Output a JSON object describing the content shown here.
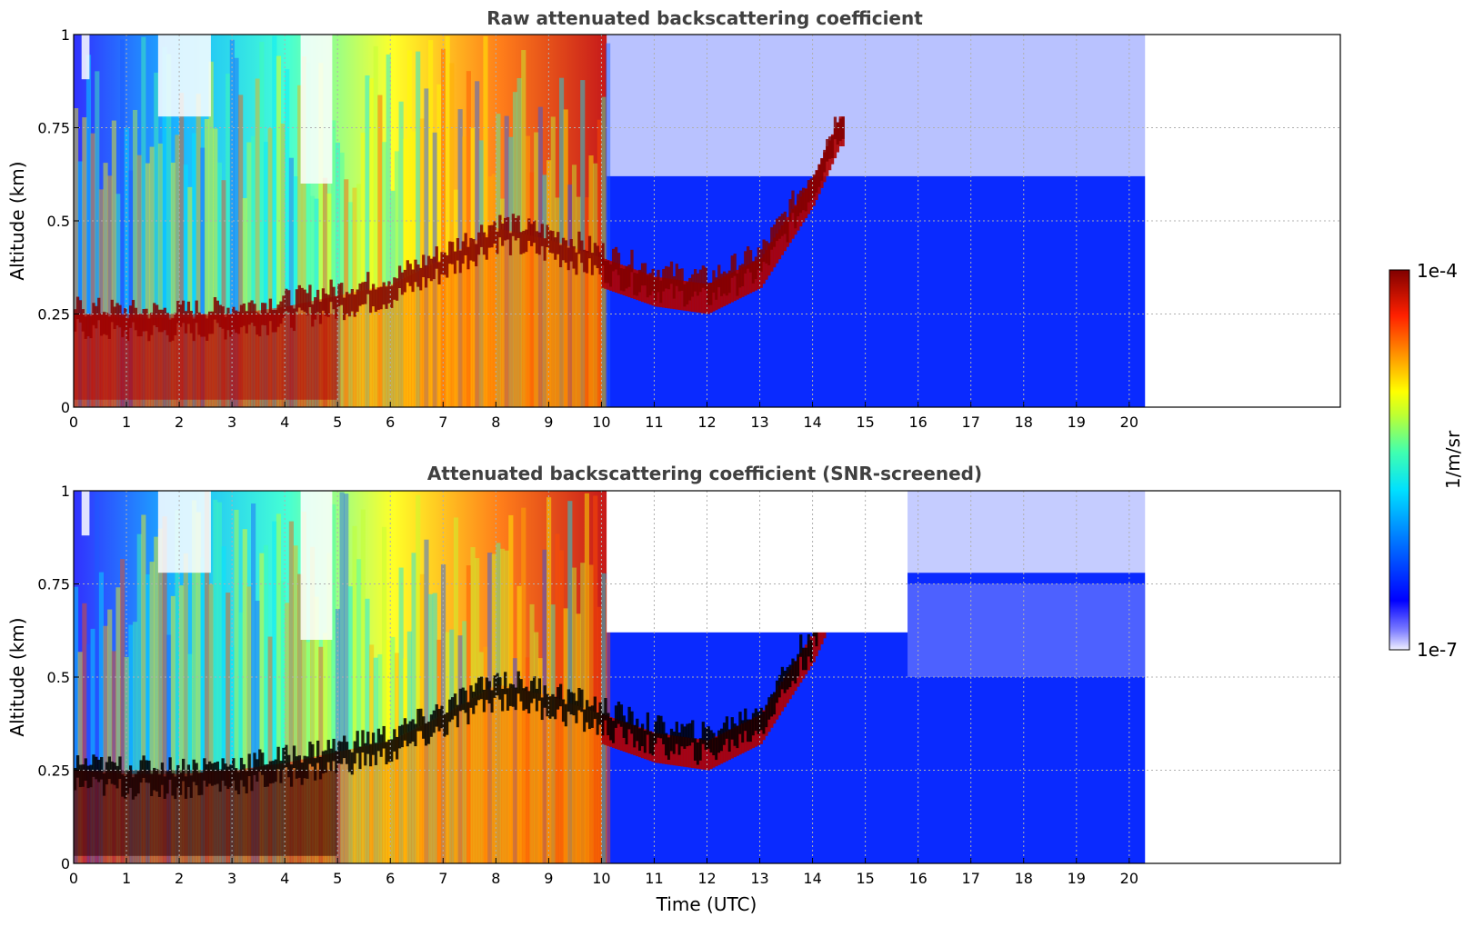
{
  "chart_data": [
    {
      "type": "heatmap",
      "title": "Raw attenuated backscattering coefficient",
      "xlabel": "",
      "ylabel": "Altitude (km)",
      "xlim": [
        0,
        24
      ],
      "ylim": [
        0,
        1
      ],
      "x_ticks": [
        "0",
        "1",
        "2",
        "3",
        "4",
        "5",
        "6",
        "7",
        "8",
        "9",
        "10",
        "11",
        "12",
        "13",
        "14",
        "15",
        "16",
        "17",
        "18",
        "19",
        "20"
      ],
      "y_ticks": [
        "0",
        "0.25",
        "0.5",
        "0.75",
        "1"
      ],
      "grid": true,
      "data_end_time": 20.3,
      "layer_top_km": [
        {
          "t": 0,
          "h": 0.25
        },
        {
          "t": 1,
          "h": 0.24
        },
        {
          "t": 2,
          "h": 0.24
        },
        {
          "t": 3,
          "h": 0.25
        },
        {
          "t": 4,
          "h": 0.27
        },
        {
          "t": 5,
          "h": 0.3
        },
        {
          "t": 6,
          "h": 0.33
        },
        {
          "t": 7,
          "h": 0.4
        },
        {
          "t": 8,
          "h": 0.48
        },
        {
          "t": 9,
          "h": 0.45
        },
        {
          "t": 10,
          "h": 0.4
        },
        {
          "t": 11,
          "h": 0.35
        },
        {
          "t": 12,
          "h": 0.33
        },
        {
          "t": 13,
          "h": 0.4
        },
        {
          "t": 14,
          "h": 0.62
        },
        {
          "t": 14.5,
          "h": 0.78
        }
      ]
    },
    {
      "type": "heatmap",
      "title": "Attenuated backscattering coefficient (SNR-screened)",
      "xlabel": "Time (UTC)",
      "ylabel": "Altitude (km)",
      "xlim": [
        0,
        24
      ],
      "ylim": [
        0,
        1
      ],
      "x_ticks": [
        "0",
        "1",
        "2",
        "3",
        "4",
        "5",
        "6",
        "7",
        "8",
        "9",
        "10",
        "11",
        "12",
        "13",
        "14",
        "15",
        "16",
        "17",
        "18",
        "19",
        "20"
      ],
      "y_ticks": [
        "0",
        "0.25",
        "0.5",
        "0.75",
        "1"
      ],
      "grid": true,
      "data_end_time": 20.3
    }
  ],
  "colorbar": {
    "max_label": "1e-4",
    "min_label": "1e-7",
    "unit_label": "1/m/sr",
    "colormap": "jet",
    "colors": [
      "#e8e8ff",
      "#0000ff",
      "#00bfff",
      "#40ffc0",
      "#ffff00",
      "#ff8000",
      "#ff2000",
      "#800000"
    ]
  }
}
